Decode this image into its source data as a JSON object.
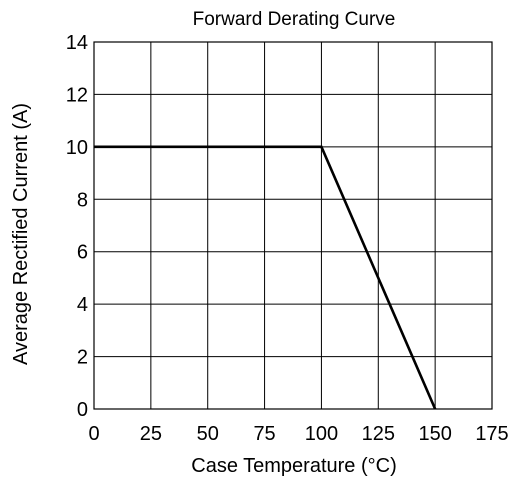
{
  "chart_data": {
    "type": "line",
    "title": "Forward Derating Curve",
    "xlabel": "Case Temperature (°C)",
    "ylabel": "Average Rectified Current (A)",
    "xlim": [
      0,
      175
    ],
    "ylim": [
      0,
      14
    ],
    "xticks": [
      0,
      25,
      50,
      75,
      100,
      125,
      150,
      175
    ],
    "yticks": [
      0,
      2,
      4,
      6,
      8,
      10,
      12,
      14
    ],
    "grid": true,
    "legend": "none",
    "series": [
      {
        "x": [
          0,
          100,
          150
        ],
        "y": [
          10,
          10,
          0
        ],
        "color": "#000000"
      }
    ]
  }
}
